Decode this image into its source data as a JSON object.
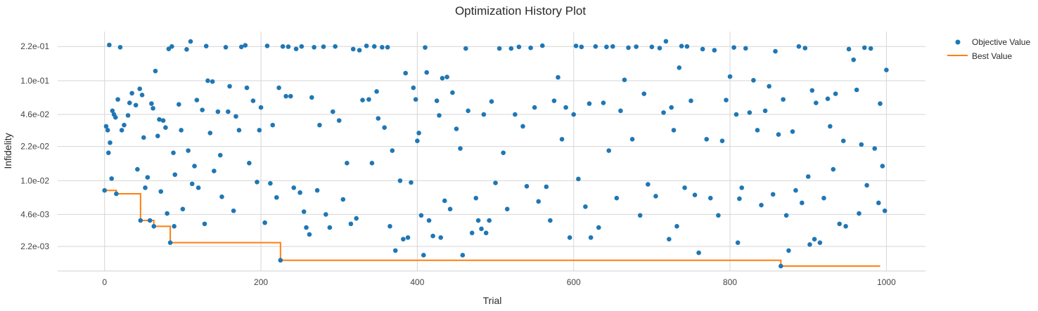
{
  "chart_data": {
    "type": "scatter",
    "title": "Optimization History Plot",
    "xlabel": "Trial",
    "ylabel": "Infidelity",
    "y_scale": "log",
    "xlim": [
      -60,
      1050
    ],
    "ylim": [
      0.00125,
      0.31
    ],
    "x_ticks": [
      {
        "value": 0,
        "label": "0"
      },
      {
        "value": 200,
        "label": "200"
      },
      {
        "value": 400,
        "label": "400"
      },
      {
        "value": 600,
        "label": "600"
      },
      {
        "value": 800,
        "label": "800"
      },
      {
        "value": 1000,
        "label": "1000"
      }
    ],
    "y_ticks": [
      {
        "value": 0.22,
        "label": "2.2e-01"
      },
      {
        "value": 0.1,
        "label": "1.0e-01"
      },
      {
        "value": 0.046,
        "label": "4.6e-02"
      },
      {
        "value": 0.022,
        "label": "2.2e-02"
      },
      {
        "value": 0.01,
        "label": "1.0e-02"
      },
      {
        "value": 0.0046,
        "label": "4.6e-03"
      },
      {
        "value": 0.0022,
        "label": "2.2e-03"
      }
    ],
    "grid": true,
    "legend_position": "top-right",
    "colors": {
      "objective": "#1f77b4",
      "best": "#ff7f0e",
      "grid": "#d6d6d6"
    },
    "series": [
      {
        "name": "Objective Value",
        "kind": "scatter",
        "n_trials": 1000,
        "points": [
          [
            0,
            0.008
          ],
          [
            2,
            0.035
          ],
          [
            4,
            0.032
          ],
          [
            5,
            0.019
          ],
          [
            6,
            0.228
          ],
          [
            7,
            0.024
          ],
          [
            9,
            0.0105
          ],
          [
            10,
            0.05
          ],
          [
            12,
            0.046
          ],
          [
            14,
            0.043
          ],
          [
            15,
            0.0074
          ],
          [
            17,
            0.065
          ],
          [
            20,
            0.216
          ],
          [
            22,
            0.032
          ],
          [
            25,
            0.036
          ],
          [
            30,
            0.045
          ],
          [
            32,
            0.06
          ],
          [
            35,
            0.075
          ],
          [
            40,
            0.057
          ],
          [
            42,
            0.013
          ],
          [
            45,
            0.083
          ],
          [
            46,
            0.004
          ],
          [
            48,
            0.072
          ],
          [
            50,
            0.027
          ],
          [
            52,
            0.0085
          ],
          [
            55,
            0.0108
          ],
          [
            58,
            0.004
          ],
          [
            60,
            0.059
          ],
          [
            62,
            0.053
          ],
          [
            63,
            0.0035
          ],
          [
            65,
            0.125
          ],
          [
            68,
            0.028
          ],
          [
            70,
            0.041
          ],
          [
            72,
            0.0078
          ],
          [
            75,
            0.04
          ],
          [
            78,
            0.034
          ],
          [
            80,
            0.0047
          ],
          [
            82,
            0.208
          ],
          [
            84,
            0.0024
          ],
          [
            86,
            0.22
          ],
          [
            88,
            0.019
          ],
          [
            89,
            0.0035
          ],
          [
            90,
            0.0115
          ],
          [
            95,
            0.058
          ],
          [
            98,
            0.032
          ],
          [
            100,
            0.0052
          ],
          [
            105,
            0.206
          ],
          [
            107,
            0.02
          ],
          [
            110,
            0.247
          ],
          [
            112,
            0.0093
          ],
          [
            115,
            0.014
          ],
          [
            118,
            0.064
          ],
          [
            120,
            0.0085
          ],
          [
            125,
            0.051
          ],
          [
            128,
            0.0037
          ],
          [
            130,
            0.222
          ],
          [
            132,
            0.1
          ],
          [
            135,
            0.03
          ],
          [
            138,
            0.098
          ],
          [
            140,
            0.0125
          ],
          [
            145,
            0.049
          ],
          [
            148,
            0.018
          ],
          [
            150,
            0.0069
          ],
          [
            155,
            0.216
          ],
          [
            158,
            0.049
          ],
          [
            160,
            0.088
          ],
          [
            165,
            0.005
          ],
          [
            168,
            0.044
          ],
          [
            172,
            0.032
          ],
          [
            175,
            0.218
          ],
          [
            180,
            0.226
          ],
          [
            182,
            0.085
          ],
          [
            185,
            0.015
          ],
          [
            190,
            0.063
          ],
          [
            195,
            0.0097
          ],
          [
            198,
            0.032
          ],
          [
            200,
            0.054
          ],
          [
            205,
            0.0038
          ],
          [
            208,
            0.223
          ],
          [
            212,
            0.0094
          ],
          [
            215,
            0.036
          ],
          [
            220,
            0.0068
          ],
          [
            223,
            0.085
          ],
          [
            225,
            0.0016
          ],
          [
            228,
            0.22
          ],
          [
            232,
            0.07
          ],
          [
            235,
            0.219
          ],
          [
            238,
            0.07
          ],
          [
            242,
            0.0085
          ],
          [
            245,
            0.208
          ],
          [
            250,
            0.0076
          ],
          [
            252,
            0.22
          ],
          [
            255,
            0.0049
          ],
          [
            258,
            0.0034
          ],
          [
            262,
            0.0029
          ],
          [
            265,
            0.068
          ],
          [
            268,
            0.216
          ],
          [
            272,
            0.008
          ],
          [
            275,
            0.036
          ],
          [
            280,
            0.219
          ],
          [
            283,
            0.0046
          ],
          [
            288,
            0.0034
          ],
          [
            292,
            0.049
          ],
          [
            295,
            0.22
          ],
          [
            300,
            0.04
          ],
          [
            305,
            0.0065
          ],
          [
            310,
            0.015
          ],
          [
            315,
            0.0037
          ],
          [
            318,
            0.207
          ],
          [
            322,
            0.0042
          ],
          [
            326,
            0.202
          ],
          [
            330,
            0.064
          ],
          [
            335,
            0.223
          ],
          [
            338,
            0.065
          ],
          [
            342,
            0.015
          ],
          [
            345,
            0.22
          ],
          [
            348,
            0.078
          ],
          [
            350,
            0.042
          ],
          [
            355,
            0.216
          ],
          [
            358,
            0.034
          ],
          [
            362,
            0.216
          ],
          [
            365,
            0.0035
          ],
          [
            368,
            0.02
          ],
          [
            372,
            0.002
          ],
          [
            378,
            0.01
          ],
          [
            382,
            0.0026
          ],
          [
            385,
            0.119
          ],
          [
            388,
            0.0027
          ],
          [
            392,
            0.0096
          ],
          [
            395,
            0.085
          ],
          [
            398,
            0.065
          ],
          [
            400,
            0.025
          ],
          [
            402,
            0.03
          ],
          [
            405,
            0.0045
          ],
          [
            408,
            0.0018
          ],
          [
            410,
            0.215
          ],
          [
            412,
            0.121
          ],
          [
            415,
            0.004
          ],
          [
            420,
            0.0028
          ],
          [
            425,
            0.063
          ],
          [
            428,
            0.045
          ],
          [
            430,
            0.0027
          ],
          [
            432,
            0.106
          ],
          [
            435,
            0.0063
          ],
          [
            438,
            0.109
          ],
          [
            442,
            0.0052
          ],
          [
            445,
            0.076
          ],
          [
            450,
            0.033
          ],
          [
            455,
            0.021
          ],
          [
            458,
            0.0018
          ],
          [
            462,
            0.21
          ],
          [
            465,
            0.05
          ],
          [
            470,
            0.003
          ],
          [
            475,
            0.0067
          ],
          [
            478,
            0.004
          ],
          [
            482,
            0.0033
          ],
          [
            485,
            0.046
          ],
          [
            488,
            0.003
          ],
          [
            492,
            0.004
          ],
          [
            495,
            0.062
          ],
          [
            500,
            0.0095
          ],
          [
            505,
            0.21
          ],
          [
            510,
            0.019
          ],
          [
            515,
            0.0052
          ],
          [
            520,
            0.21
          ],
          [
            525,
            0.046
          ],
          [
            530,
            0.218
          ],
          [
            535,
            0.035
          ],
          [
            540,
            0.0088
          ],
          [
            545,
            0.213
          ],
          [
            550,
            0.054
          ],
          [
            555,
            0.0062
          ],
          [
            560,
            0.224
          ],
          [
            565,
            0.0087
          ],
          [
            570,
            0.004
          ],
          [
            575,
            0.063
          ],
          [
            580,
            0.108
          ],
          [
            585,
            0.026
          ],
          [
            590,
            0.054
          ],
          [
            595,
            0.0027
          ],
          [
            600,
            0.046
          ],
          [
            603,
            0.223
          ],
          [
            606,
            0.0104
          ],
          [
            610,
            0.218
          ],
          [
            615,
            0.0055
          ],
          [
            620,
            0.059
          ],
          [
            622,
            0.0027
          ],
          [
            628,
            0.22
          ],
          [
            632,
            0.0034
          ],
          [
            638,
            0.06
          ],
          [
            642,
            0.218
          ],
          [
            645,
            0.02
          ],
          [
            650,
            0.22
          ],
          [
            655,
            0.0067
          ],
          [
            660,
            0.05
          ],
          [
            665,
            0.102
          ],
          [
            670,
            0.214
          ],
          [
            675,
            0.026
          ],
          [
            680,
            0.219
          ],
          [
            685,
            0.0045
          ],
          [
            690,
            0.074
          ],
          [
            695,
            0.0092
          ],
          [
            700,
            0.218
          ],
          [
            705,
            0.007
          ],
          [
            710,
            0.212
          ],
          [
            715,
            0.048
          ],
          [
            718,
            0.248
          ],
          [
            722,
            0.0026
          ],
          [
            725,
            0.054
          ],
          [
            728,
            0.032
          ],
          [
            732,
            0.0035
          ],
          [
            735,
            0.135
          ],
          [
            738,
            0.222
          ],
          [
            742,
            0.0085
          ],
          [
            745,
            0.22
          ],
          [
            750,
            0.063
          ],
          [
            755,
            0.0072
          ],
          [
            760,
            0.0019
          ],
          [
            765,
            0.207
          ],
          [
            770,
            0.026
          ],
          [
            775,
            0.0067
          ],
          [
            780,
            0.202
          ],
          [
            785,
            0.0045
          ],
          [
            790,
            0.025
          ],
          [
            795,
            0.064
          ],
          [
            800,
            0.11
          ],
          [
            805,
            0.215
          ],
          [
            808,
            0.046
          ],
          [
            810,
            0.0024
          ],
          [
            812,
            0.0066
          ],
          [
            815,
            0.0085
          ],
          [
            820,
            0.211
          ],
          [
            825,
            0.048
          ],
          [
            830,
            0.101
          ],
          [
            835,
            0.032
          ],
          [
            840,
            0.0057
          ],
          [
            845,
            0.05
          ],
          [
            850,
            0.088
          ],
          [
            855,
            0.0073
          ],
          [
            858,
            0.197
          ],
          [
            862,
            0.029
          ],
          [
            865,
            0.0014
          ],
          [
            868,
            0.065
          ],
          [
            872,
            0.0045
          ],
          [
            875,
            0.002
          ],
          [
            880,
            0.031
          ],
          [
            884,
            0.008
          ],
          [
            888,
            0.22
          ],
          [
            892,
            0.006
          ],
          [
            896,
            0.212
          ],
          [
            900,
            0.011
          ],
          [
            902,
            0.0023
          ],
          [
            905,
            0.08
          ],
          [
            908,
            0.0026
          ],
          [
            910,
            0.06
          ],
          [
            915,
            0.0024
          ],
          [
            920,
            0.0067
          ],
          [
            925,
            0.066
          ],
          [
            928,
            0.035
          ],
          [
            932,
            0.013
          ],
          [
            935,
            0.074
          ],
          [
            940,
            0.0037
          ],
          [
            945,
            0.025
          ],
          [
            948,
            0.0035
          ],
          [
            952,
            0.207
          ],
          [
            958,
            0.162
          ],
          [
            962,
            0.081
          ],
          [
            965,
            0.0047
          ],
          [
            968,
            0.023
          ],
          [
            972,
            0.214
          ],
          [
            975,
            0.009
          ],
          [
            980,
            0.21
          ],
          [
            985,
            0.021
          ],
          [
            990,
            0.006
          ],
          [
            992,
            0.059
          ],
          [
            995,
            0.014
          ],
          [
            998,
            0.005
          ],
          [
            1000,
            0.128
          ]
        ]
      },
      {
        "name": "Best Value",
        "kind": "step",
        "points": [
          [
            0,
            0.008
          ],
          [
            15,
            0.0074
          ],
          [
            46,
            0.004
          ],
          [
            63,
            0.0035
          ],
          [
            84,
            0.0024
          ],
          [
            225,
            0.0016
          ],
          [
            865,
            0.0014
          ],
          [
            992,
            0.0014
          ]
        ]
      }
    ]
  }
}
